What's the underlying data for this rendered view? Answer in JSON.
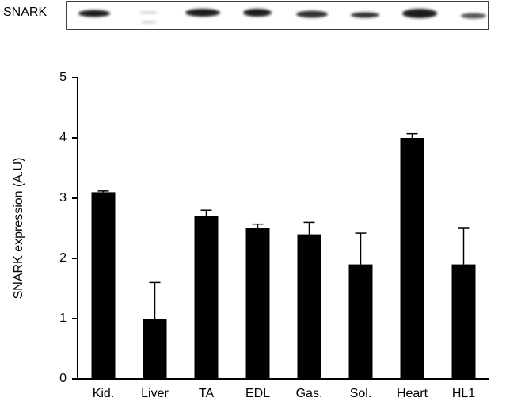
{
  "chart_data": {
    "type": "bar",
    "blot_label": "SNARK",
    "y_label": "SNARK expression  (A.U)",
    "categories": [
      "Kid.",
      "Liver",
      "TA",
      "EDL",
      "Gas.",
      "Sol.",
      "Heart",
      "HL1"
    ],
    "values": [
      3.1,
      1.0,
      2.7,
      2.5,
      2.4,
      1.9,
      4.0,
      1.9
    ],
    "errors": [
      0.02,
      0.6,
      0.1,
      0.07,
      0.2,
      0.52,
      0.07,
      0.6
    ],
    "color": "#000000",
    "ylim": [
      0,
      5
    ],
    "yticks": [
      0,
      1,
      2,
      3,
      4,
      5
    ],
    "grid": false
  }
}
